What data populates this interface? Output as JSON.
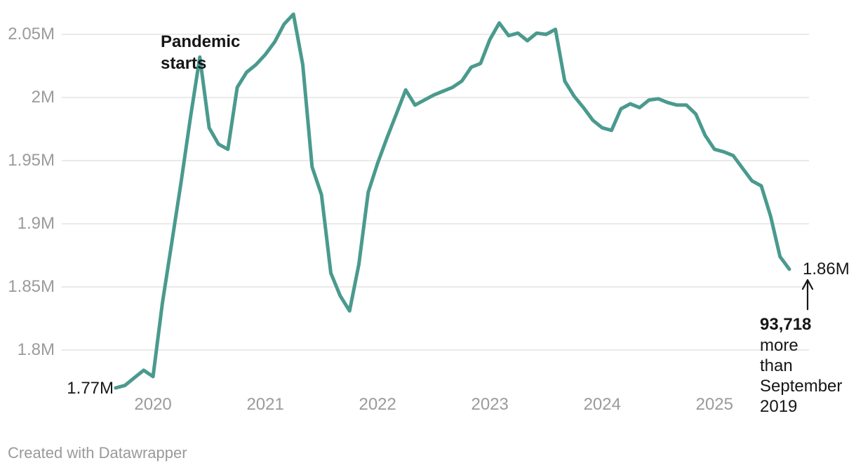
{
  "colors": {
    "line": "#4a9a8e",
    "grid": "#e4e4e4",
    "axis_text": "#9b9b9b",
    "annotation_text": "#161616",
    "footer_text": "#9a9a9a",
    "background": "#ffffff"
  },
  "chart_data": {
    "type": "line",
    "title": "",
    "xlabel": "",
    "ylabel": "",
    "unit": "persons (millions)",
    "grid": "horizontal",
    "legend": "none",
    "ylim": [
      1.766,
      2.077
    ],
    "x_range": [
      "2019-09",
      "2025-09"
    ],
    "y_axis": {
      "ticks": [
        {
          "label": "2.05M",
          "value": 2.05
        },
        {
          "label": "2M",
          "value": 2.0
        },
        {
          "label": "1.95M",
          "value": 1.95
        },
        {
          "label": "1.9M",
          "value": 1.9
        },
        {
          "label": "1.85M",
          "value": 1.85
        },
        {
          "label": "1.8M",
          "value": 1.8
        }
      ]
    },
    "x_axis": {
      "ticks": [
        {
          "label": "2020",
          "month": "2020-01"
        },
        {
          "label": "2021",
          "month": "2021-01"
        },
        {
          "label": "2022",
          "month": "2022-01"
        },
        {
          "label": "2023",
          "month": "2023-01"
        },
        {
          "label": "2024",
          "month": "2024-01"
        },
        {
          "label": "2025",
          "month": "2025-01"
        }
      ]
    },
    "points": [
      [
        "2019-09",
        1.77
      ],
      [
        "2019-10",
        1.772
      ],
      [
        "2019-11",
        1.778
      ],
      [
        "2019-12",
        1.784
      ],
      [
        "2020-01",
        1.779
      ],
      [
        "2020-02",
        1.837
      ],
      [
        "2020-03",
        1.885
      ],
      [
        "2020-04",
        1.933
      ],
      [
        "2020-05",
        1.984
      ],
      [
        "2020-06",
        2.032
      ],
      [
        "2020-07",
        1.976
      ],
      [
        "2020-08",
        1.963
      ],
      [
        "2020-09",
        1.959
      ],
      [
        "2020-10",
        2.008
      ],
      [
        "2020-11",
        2.02
      ],
      [
        "2020-12",
        2.026
      ],
      [
        "2021-01",
        2.034
      ],
      [
        "2021-02",
        2.044
      ],
      [
        "2021-03",
        2.058
      ],
      [
        "2021-04",
        2.066
      ],
      [
        "2021-05",
        2.026
      ],
      [
        "2021-06",
        1.945
      ],
      [
        "2021-07",
        1.923
      ],
      [
        "2021-08",
        1.861
      ],
      [
        "2021-09",
        1.843
      ],
      [
        "2021-10",
        1.831
      ],
      [
        "2021-11",
        1.868
      ],
      [
        "2021-12",
        1.925
      ],
      [
        "2022-01",
        1.948
      ],
      [
        "2022-02",
        1.968
      ],
      [
        "2022-03",
        1.987
      ],
      [
        "2022-04",
        2.006
      ],
      [
        "2022-05",
        1.994
      ],
      [
        "2022-06",
        1.998
      ],
      [
        "2022-07",
        2.002
      ],
      [
        "2022-08",
        2.005
      ],
      [
        "2022-09",
        2.008
      ],
      [
        "2022-10",
        2.013
      ],
      [
        "2022-11",
        2.024
      ],
      [
        "2022-12",
        2.027
      ],
      [
        "2023-01",
        2.046
      ],
      [
        "2023-02",
        2.059
      ],
      [
        "2023-03",
        2.049
      ],
      [
        "2023-04",
        2.051
      ],
      [
        "2023-05",
        2.045
      ],
      [
        "2023-06",
        2.051
      ],
      [
        "2023-07",
        2.05
      ],
      [
        "2023-08",
        2.054
      ],
      [
        "2023-09",
        2.013
      ],
      [
        "2023-10",
        2.001
      ],
      [
        "2023-11",
        1.992
      ],
      [
        "2023-12",
        1.982
      ],
      [
        "2024-01",
        1.976
      ],
      [
        "2024-02",
        1.974
      ],
      [
        "2024-03",
        1.991
      ],
      [
        "2024-04",
        1.995
      ],
      [
        "2024-05",
        1.992
      ],
      [
        "2024-06",
        1.998
      ],
      [
        "2024-07",
        1.999
      ],
      [
        "2024-08",
        1.996
      ],
      [
        "2024-09",
        1.994
      ],
      [
        "2024-10",
        1.994
      ],
      [
        "2024-11",
        1.987
      ],
      [
        "2024-12",
        1.97
      ],
      [
        "2025-01",
        1.959
      ],
      [
        "2025-02",
        1.957
      ],
      [
        "2025-03",
        1.954
      ],
      [
        "2025-04",
        1.944
      ],
      [
        "2025-05",
        1.934
      ],
      [
        "2025-06",
        1.93
      ],
      [
        "2025-07",
        1.906
      ],
      [
        "2025-08",
        1.874
      ],
      [
        "2025-09",
        1.864
      ]
    ]
  },
  "annotations": {
    "pandemic": {
      "text": "Pandemic starts"
    },
    "start_value": {
      "label": "1.77M"
    },
    "end_value": {
      "label": "1.86M"
    },
    "delta": {
      "value": "93,718",
      "text": "more than September 2019"
    }
  },
  "footer": {
    "attribution": "Created with Datawrapper"
  }
}
